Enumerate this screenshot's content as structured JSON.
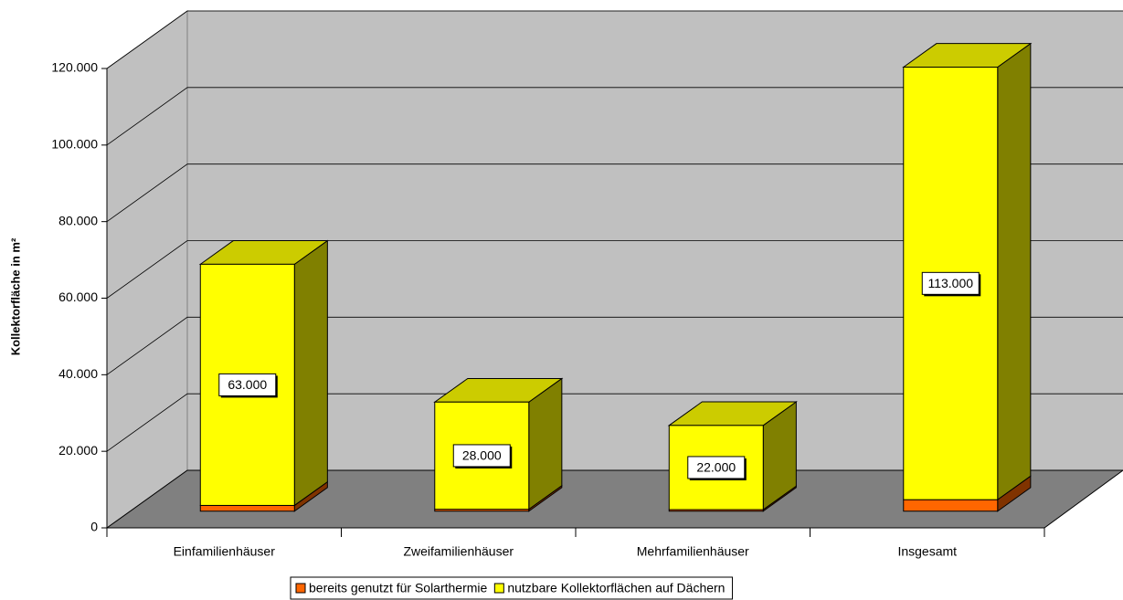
{
  "chart_data": {
    "type": "bar3d_stacked",
    "y_axis_label": "Kollektorfläche in m²",
    "categories": [
      "Einfamilienhäuser",
      "Zweifamilienhäuser",
      "Mehrfamilienhäuser",
      "Insgesamt"
    ],
    "series": [
      {
        "name": "bereits genutzt für Solarthermie",
        "color": "#ff6600",
        "values": [
          1500,
          500,
          400,
          3000
        ]
      },
      {
        "name": "nutzbare Kollektorflächen auf Dächern",
        "color": "#ffff00",
        "values": [
          63000,
          28000,
          22000,
          113000
        ],
        "value_labels": [
          "63.000",
          "28.000",
          "22.000",
          "113.000"
        ]
      }
    ],
    "ylim": [
      0,
      120000
    ],
    "yticks": [
      0,
      {
        "value": 20000,
        "label": "20.000"
      },
      {
        "value": 40000,
        "label": "40.000"
      },
      {
        "value": 60000,
        "label": "60.000"
      },
      {
        "value": 80000,
        "label": "80.000"
      },
      {
        "value": 100000,
        "label": "100.000"
      },
      {
        "value": 120000,
        "label": "120.000"
      }
    ],
    "grid": true,
    "legend": "bottom"
  }
}
